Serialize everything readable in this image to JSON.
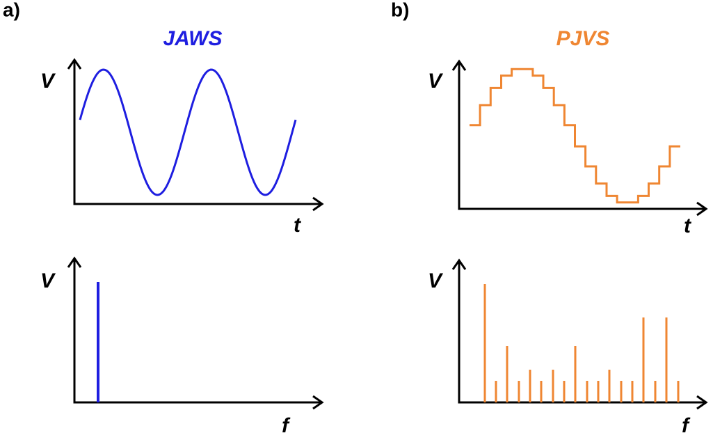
{
  "panels": [
    {
      "label": "a)",
      "title": "JAWS",
      "time_plot": {
        "y_label": "V",
        "x_label": "t"
      },
      "spectrum_plot": {
        "y_label": "V",
        "x_label": "f"
      }
    },
    {
      "label": "b)",
      "title": "PJVS",
      "time_plot": {
        "y_label": "V",
        "x_label": "t"
      },
      "spectrum_plot": {
        "y_label": "V",
        "x_label": "f"
      }
    }
  ]
}
